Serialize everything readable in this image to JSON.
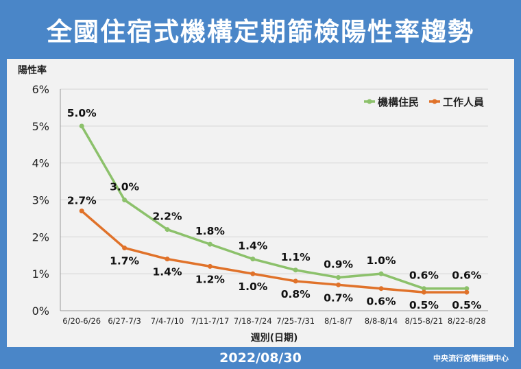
{
  "header": {
    "title": "全國住宿式機構定期篩檢陽性率趨勢"
  },
  "footer": {
    "date": "2022/08/30",
    "org": "中央流行疫情指揮中心"
  },
  "colors": {
    "series1": "#8cc16b",
    "series2": "#e0722a",
    "background": "#4a86c8",
    "panel": "#f2f2f2"
  },
  "chart_data": {
    "type": "line",
    "title": "全國住宿式機構定期篩檢陽性率趨勢",
    "xlabel": "週別(日期)",
    "ylabel": "陽性率",
    "ylim": [
      0,
      6
    ],
    "yticks": [
      "0%",
      "1%",
      "2%",
      "3%",
      "4%",
      "5%",
      "6%"
    ],
    "grid": true,
    "legend_position": "top-right",
    "categories": [
      "6/20-6/26",
      "6/27-7/3",
      "7/4-7/10",
      "7/11-7/17",
      "7/18-7/24",
      "7/25-7/31",
      "8/1-8/7",
      "8/8-8/14",
      "8/15-8/21",
      "8/22-8/28"
    ],
    "series": [
      {
        "name": "機構住民",
        "values": [
          5.0,
          3.0,
          2.2,
          1.8,
          1.4,
          1.1,
          0.9,
          1.0,
          0.6,
          0.6
        ],
        "labels": [
          "5.0%",
          "3.0%",
          "2.2%",
          "1.8%",
          "1.4%",
          "1.1%",
          "0.9%",
          "1.0%",
          "0.6%",
          "0.6%"
        ]
      },
      {
        "name": "工作人員",
        "values": [
          2.7,
          1.7,
          1.4,
          1.2,
          1.0,
          0.8,
          0.7,
          0.6,
          0.5,
          0.5
        ],
        "labels": [
          "2.7%",
          "1.7%",
          "1.4%",
          "1.2%",
          "1.0%",
          "0.8%",
          "0.7%",
          "0.6%",
          "0.5%",
          "0.5%"
        ]
      }
    ]
  }
}
